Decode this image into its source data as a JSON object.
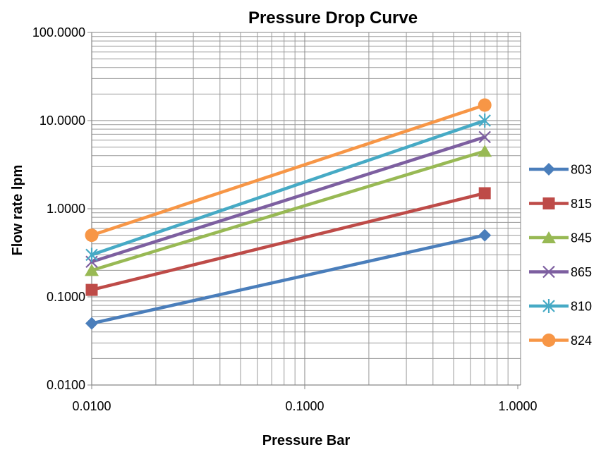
{
  "chart_data": {
    "type": "line",
    "title": "Pressure Drop Curve",
    "xlabel": "Pressure Bar",
    "ylabel": "Flow rate lpm",
    "x_scale": "log",
    "y_scale": "log",
    "xlim": [
      0.01,
      1
    ],
    "ylim": [
      0.01,
      100
    ],
    "x_ticks": [
      0.01,
      0.1,
      1
    ],
    "x_tick_labels": [
      "0.0100",
      "0.1000",
      "1.0000"
    ],
    "y_ticks": [
      0.01,
      0.1,
      1,
      10,
      100
    ],
    "y_tick_labels": [
      "0.0100",
      "0.1000",
      "1.0000",
      "10.0000",
      "100.0000"
    ],
    "grid": true,
    "legend_position": "right",
    "x": [
      0.01,
      0.7
    ],
    "series": [
      {
        "name": "803",
        "values": [
          0.05,
          0.5
        ],
        "color": "#4A7EBB",
        "marker": "diamond"
      },
      {
        "name": "815",
        "values": [
          0.12,
          1.5
        ],
        "color": "#BE4B48",
        "marker": "square"
      },
      {
        "name": "845",
        "values": [
          0.2,
          4.5
        ],
        "color": "#98B954",
        "marker": "triangle"
      },
      {
        "name": "865",
        "values": [
          0.25,
          6.5
        ],
        "color": "#7D5FA0",
        "marker": "x"
      },
      {
        "name": "810",
        "values": [
          0.3,
          10
        ],
        "color": "#46AAC5",
        "marker": "star"
      },
      {
        "name": "824",
        "values": [
          0.5,
          15
        ],
        "color": "#F79646",
        "marker": "circle"
      }
    ]
  }
}
